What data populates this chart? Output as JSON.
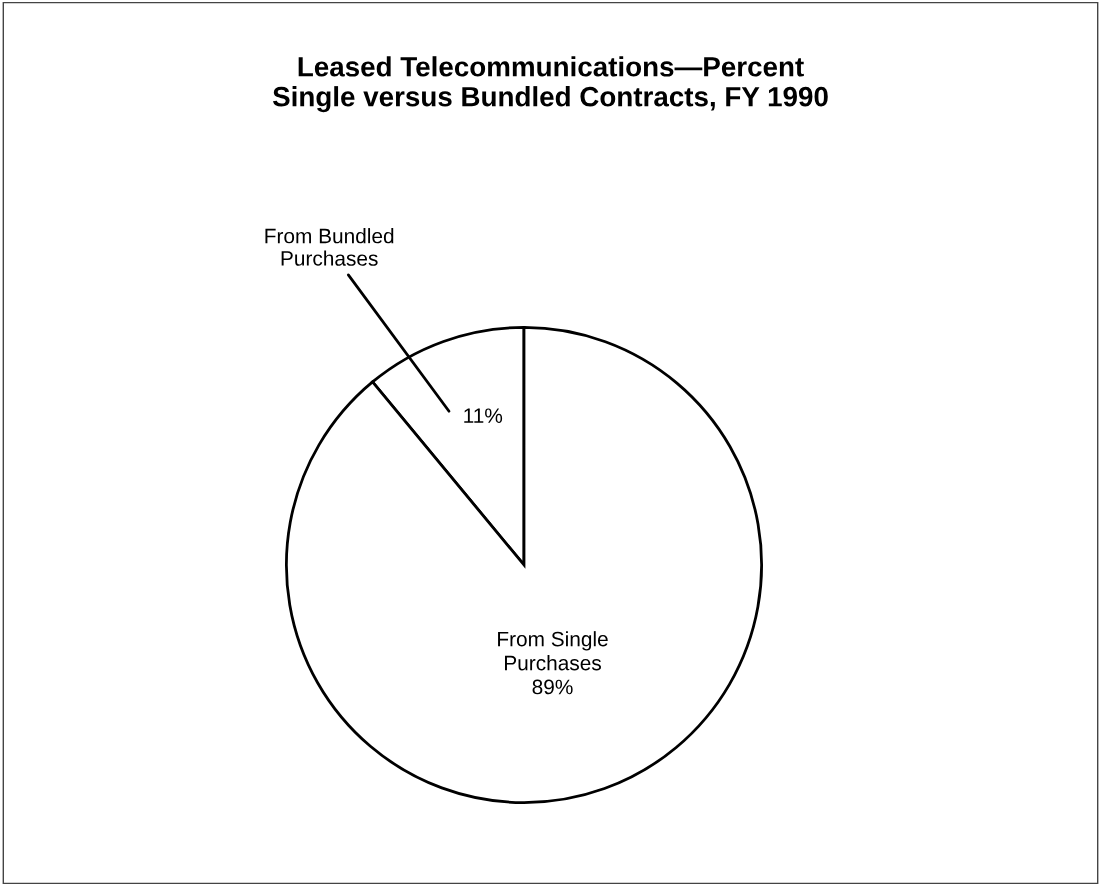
{
  "chart_data": {
    "type": "pie",
    "title": "Leased Telecommunications—Percent\nSingle versus Bundled Contracts, FY 1990",
    "categories": [
      "From Bundled\nPurchases",
      "From Single\nPurchases"
    ],
    "values": [
      11,
      89
    ],
    "colors": [
      "#ffffff",
      "#ffffff"
    ],
    "value_labels": [
      "11%",
      "89%"
    ],
    "legend": false
  }
}
